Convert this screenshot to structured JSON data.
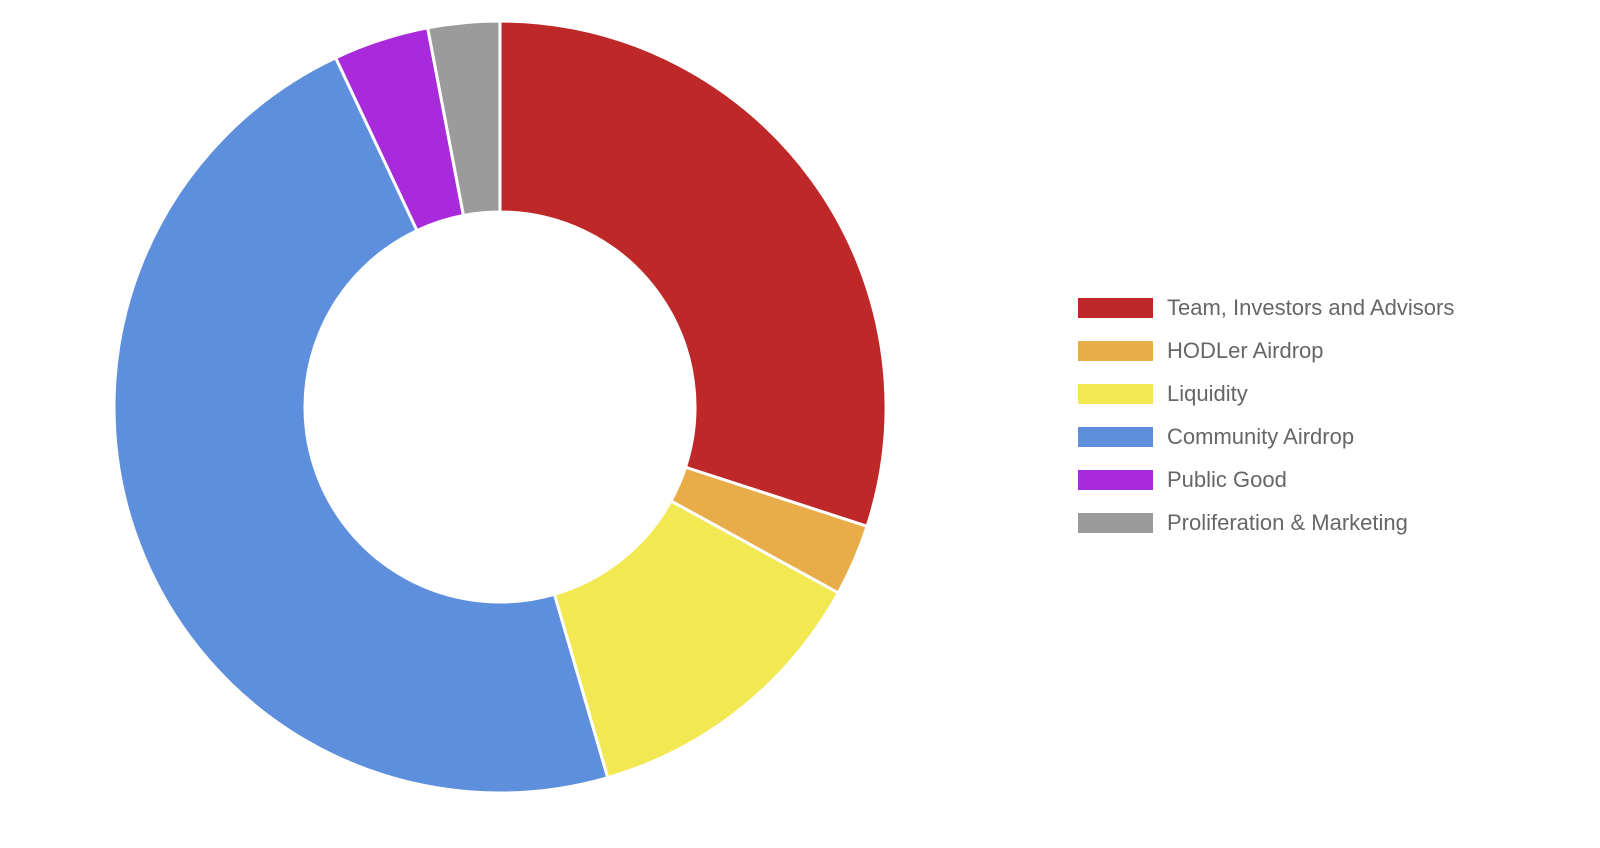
{
  "chart_data": {
    "type": "pie",
    "variant": "doughnut",
    "title": "",
    "legend_placement": "right",
    "categories": [
      "Team, Investors and Advisors",
      "HODLer Airdrop",
      "Liquidity",
      "Community Airdrop",
      "Public Good",
      "Proliferation & Marketing"
    ],
    "values": [
      30,
      3,
      12.5,
      47.5,
      4,
      3
    ],
    "colors": [
      "#BE2828",
      "#E8AC48",
      "#F2E852",
      "#5D8FDC",
      "#A82ADB",
      "#9B9B9B"
    ]
  }
}
